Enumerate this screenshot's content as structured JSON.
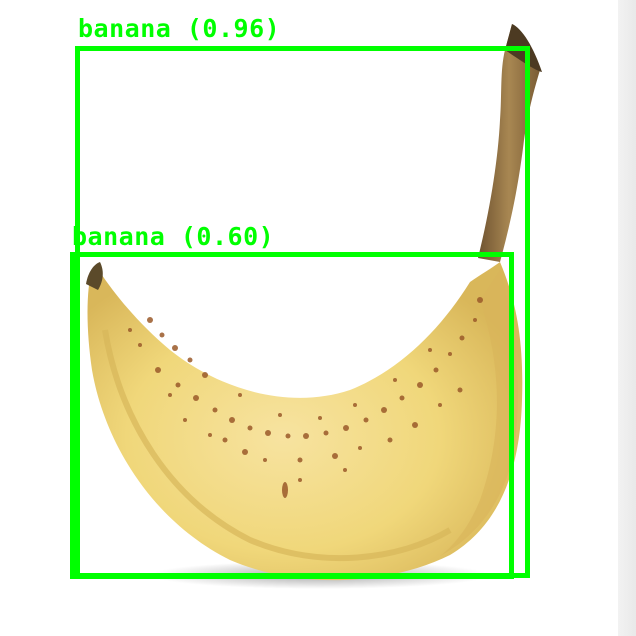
{
  "image": {
    "subject": "banana",
    "background_color": "#ffffff"
  },
  "detections": [
    {
      "class": "banana",
      "confidence": 0.96,
      "label": "banana (0.96)"
    },
    {
      "class": "banana",
      "confidence": 0.6,
      "label": "banana (0.60)"
    }
  ],
  "colors": {
    "box_stroke": "#00ff00",
    "banana_peel": "#f0d77a",
    "banana_shadow": "#d8b95a",
    "stem": "#8a6a3a",
    "spots": "#9b5a2a"
  }
}
